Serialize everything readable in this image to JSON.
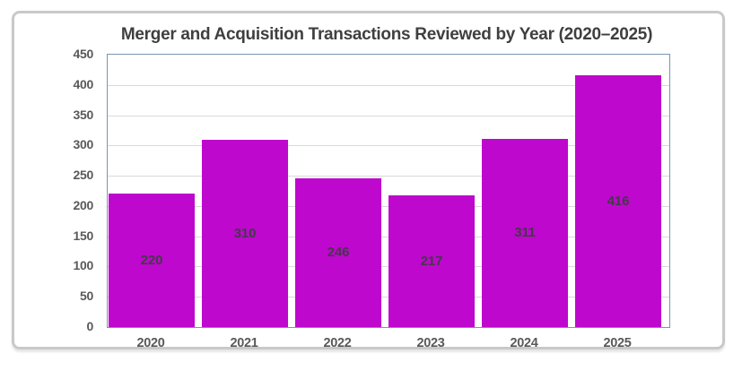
{
  "chart_data": {
    "type": "bar",
    "title": "Merger and Acquisition Transactions Reviewed by Year (2020–2025)",
    "categories": [
      "2020",
      "2021",
      "2022",
      "2023",
      "2024",
      "2025"
    ],
    "values": [
      220,
      310,
      246,
      217,
      311,
      416
    ],
    "data_labels": [
      "220",
      "310",
      "246",
      "217",
      "311",
      "416"
    ],
    "xlabel": "",
    "ylabel": "",
    "ylim": [
      0,
      450
    ],
    "ytick_step": 50,
    "yticks": [
      "0",
      "50",
      "100",
      "150",
      "200",
      "250",
      "300",
      "350",
      "400",
      "450"
    ],
    "grid": true,
    "legend": "none",
    "colors": {
      "bar_fill": "#be08ce",
      "bar_label_text": "#433a46",
      "title_text": "#3f3f3f",
      "axis_text": "#595959",
      "gridline": "#d9d9d9",
      "plot_border": "#7a95ae",
      "card_border": "#c9c9c9",
      "background": "#ffffff"
    }
  }
}
